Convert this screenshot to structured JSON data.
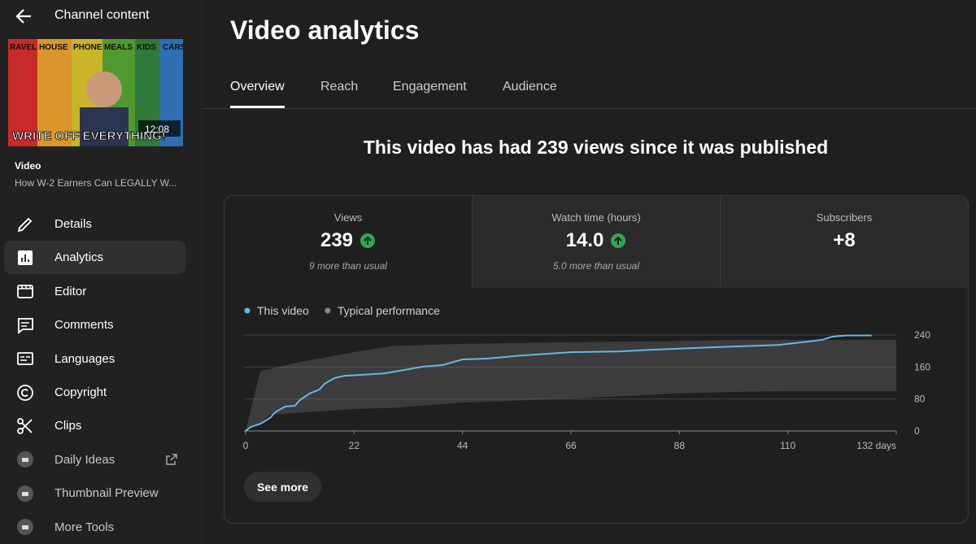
{
  "sidebar": {
    "back_title": "Channel content",
    "thumbnail": {
      "labels": [
        "RAVEL",
        "HOUSE",
        "PHONE",
        "MEALS",
        "KIDS",
        "CARS"
      ],
      "caption": "WRITE OFF EVERYTHING!",
      "duration": "12:08"
    },
    "video_label": "Video",
    "video_title": "How W-2 Earners Can LEGALLY W...",
    "nav": [
      "Details",
      "Analytics",
      "Editor",
      "Comments",
      "Languages",
      "Copyright",
      "Clips",
      "Daily Ideas",
      "Thumbnail Preview",
      "More Tools"
    ]
  },
  "header": {
    "title": "Video analytics",
    "tabs": [
      "Overview",
      "Reach",
      "Engagement",
      "Audience"
    ]
  },
  "headline": "This video has had 239 views since it was published",
  "metrics": [
    {
      "label": "Views",
      "value": "239",
      "note": "9 more than usual"
    },
    {
      "label": "Watch time (hours)",
      "value": "14.0",
      "note": "5.0 more than usual"
    },
    {
      "label": "Subscribers",
      "value": "+8"
    }
  ],
  "chart_data": {
    "type": "line",
    "series": [
      {
        "name": "This video",
        "color": "#65b8e0",
        "x": [
          0,
          1,
          3,
          5,
          6,
          8,
          10,
          11,
          13,
          15,
          16,
          18,
          20,
          23,
          28,
          31,
          36,
          40,
          44,
          49,
          56,
          66,
          76,
          82,
          94,
          108,
          113,
          117,
          119,
          122,
          127
        ],
        "values": [
          0,
          10,
          18,
          33,
          47,
          61,
          63,
          77,
          94,
          104,
          118,
          132,
          138,
          140,
          144,
          150,
          161,
          165,
          179,
          181,
          189,
          197,
          199,
          203,
          209,
          215,
          222,
          228,
          236,
          239,
          239
        ]
      }
    ],
    "band": {
      "name": "Typical performance",
      "color": "#8a8a8a",
      "x": [
        0,
        3,
        5,
        10,
        22,
        30,
        44,
        66,
        88,
        100,
        110,
        132
      ],
      "low": [
        0,
        20,
        41,
        45,
        55,
        58,
        71,
        81,
        94,
        98,
        100,
        100
      ],
      "high": [
        0,
        150,
        155,
        170,
        197,
        213,
        218,
        222,
        225,
        228,
        228,
        228
      ]
    },
    "xlim": [
      0,
      132
    ],
    "ylim": [
      0,
      240
    ],
    "xticks": [
      0,
      22,
      44,
      66,
      88,
      110,
      {
        "value": 132,
        "label": "132 days"
      }
    ],
    "yticks": [
      0,
      80,
      160,
      240
    ],
    "grid": true
  },
  "button": "See more"
}
